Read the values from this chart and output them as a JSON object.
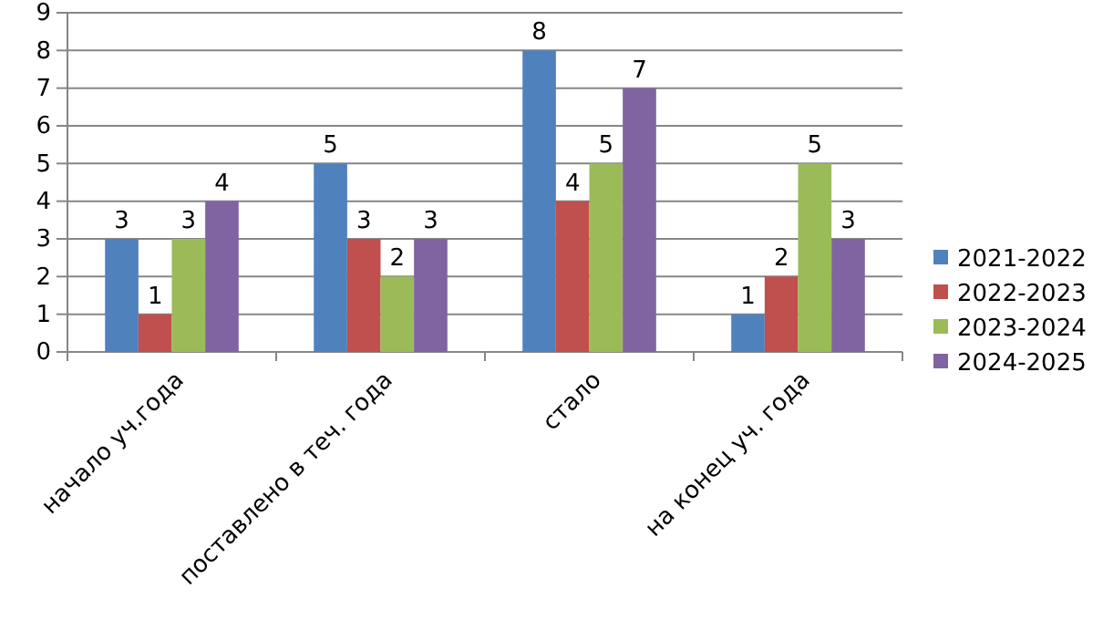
{
  "chart_data": {
    "type": "bar",
    "categories": [
      "начало уч.года",
      "поставлено в теч. года",
      "стало",
      "на конец уч. года"
    ],
    "series": [
      {
        "name": "2021-2022",
        "color": "#4f81bd",
        "values": [
          3,
          5,
          8,
          1
        ]
      },
      {
        "name": "2022-2023",
        "color": "#c0504d",
        "values": [
          1,
          3,
          4,
          2
        ]
      },
      {
        "name": "2023-2024",
        "color": "#9bbb59",
        "values": [
          3,
          2,
          5,
          5
        ]
      },
      {
        "name": "2024-2025",
        "color": "#8064a2",
        "values": [
          4,
          3,
          7,
          3
        ]
      }
    ],
    "ylim": [
      0,
      9
    ],
    "yticks": [
      0,
      1,
      2,
      3,
      4,
      5,
      6,
      7,
      8,
      9
    ],
    "grid": "y",
    "legend": "right",
    "data_labels": true
  }
}
